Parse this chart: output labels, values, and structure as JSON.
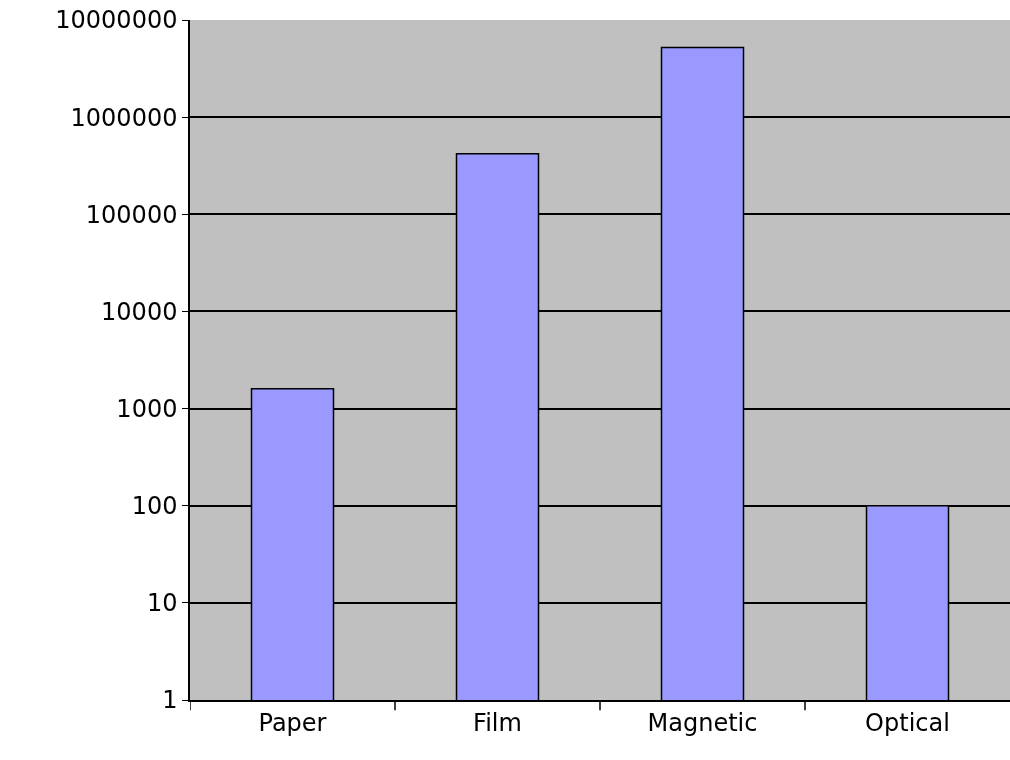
{
  "chart_data": {
    "type": "bar",
    "categories": [
      "Paper",
      "Film",
      "Magnetic",
      "Optical"
    ],
    "values": [
      1600,
      420000,
      5200000,
      100
    ],
    "color": "#9999ff",
    "log": true,
    "ylim": [
      1,
      10000000
    ],
    "yticks": [
      1,
      10,
      100,
      1000,
      10000,
      100000,
      1000000,
      10000000
    ],
    "grid": "y"
  }
}
